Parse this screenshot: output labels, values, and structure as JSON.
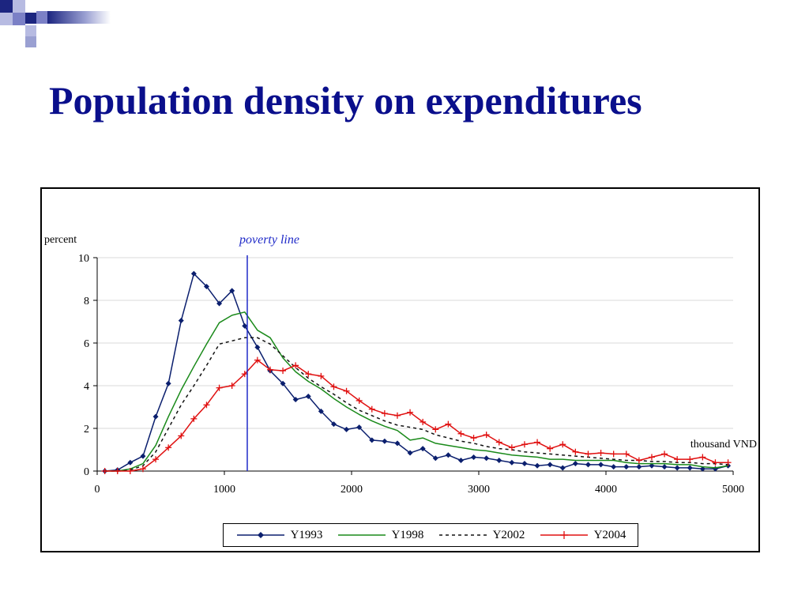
{
  "slide": {
    "title": "Population density on expenditures"
  },
  "chart_data": {
    "type": "line",
    "ylabel": "percent",
    "xlabel": "thousand VND",
    "xlim": [
      0,
      5000
    ],
    "ylim": [
      0,
      10
    ],
    "x_ticks": [
      0,
      1000,
      2000,
      3000,
      4000,
      5000
    ],
    "y_ticks": [
      0,
      2,
      4,
      6,
      8,
      10
    ],
    "grid": "horizontal",
    "legend_placement": "bottom",
    "annotation": {
      "label": "poverty line",
      "x": 1180,
      "color": "#1f2ac8"
    },
    "series": [
      {
        "name": "Y1993",
        "color": "#0b1f6e",
        "marker": "diamond",
        "dash": "",
        "x": [
          60,
          160,
          260,
          360,
          460,
          560,
          660,
          760,
          860,
          960,
          1060,
          1160,
          1260,
          1360,
          1460,
          1560,
          1660,
          1760,
          1860,
          1960,
          2060,
          2160,
          2260,
          2360,
          2460,
          2560,
          2660,
          2760,
          2860,
          2960,
          3060,
          3160,
          3260,
          3360,
          3460,
          3560,
          3660,
          3760,
          3860,
          3960,
          4060,
          4160,
          4260,
          4360,
          4460,
          4560,
          4660,
          4760,
          4860,
          4960
        ],
        "y": [
          0,
          0.05,
          0.4,
          0.7,
          2.55,
          4.1,
          7.05,
          9.25,
          8.65,
          7.85,
          8.45,
          6.8,
          5.8,
          4.7,
          4.1,
          3.35,
          3.5,
          2.8,
          2.2,
          1.95,
          2.05,
          1.45,
          1.4,
          1.3,
          0.85,
          1.05,
          0.6,
          0.75,
          0.5,
          0.65,
          0.6,
          0.5,
          0.4,
          0.35,
          0.25,
          0.3,
          0.15,
          0.35,
          0.3,
          0.3,
          0.2,
          0.2,
          0.2,
          0.25,
          0.2,
          0.15,
          0.15,
          0.1,
          0.1,
          0.25
        ]
      },
      {
        "name": "Y1998",
        "color": "#1a8a1a",
        "marker": "none",
        "dash": "",
        "x": [
          60,
          160,
          260,
          360,
          460,
          560,
          660,
          760,
          860,
          960,
          1060,
          1160,
          1260,
          1360,
          1460,
          1560,
          1660,
          1760,
          1860,
          1960,
          2060,
          2160,
          2260,
          2360,
          2460,
          2560,
          2660,
          2760,
          2860,
          2960,
          3060,
          3160,
          3260,
          3360,
          3460,
          3560,
          3660,
          3760,
          3860,
          3960,
          4060,
          4160,
          4260,
          4360,
          4460,
          4560,
          4660,
          4760,
          4860,
          4960
        ],
        "y": [
          0,
          0,
          0.1,
          0.35,
          1.2,
          2.55,
          3.8,
          4.9,
          5.95,
          6.95,
          7.3,
          7.45,
          6.6,
          6.25,
          5.3,
          4.65,
          4.2,
          3.85,
          3.4,
          3.0,
          2.65,
          2.35,
          2.1,
          1.9,
          1.45,
          1.55,
          1.3,
          1.2,
          1.1,
          1.0,
          0.95,
          0.85,
          0.75,
          0.7,
          0.65,
          0.55,
          0.55,
          0.5,
          0.5,
          0.5,
          0.5,
          0.4,
          0.35,
          0.35,
          0.35,
          0.3,
          0.3,
          0.2,
          0.15,
          0.25
        ]
      },
      {
        "name": "Y2002",
        "color": "#111111",
        "marker": "none",
        "dash": "4,4",
        "x": [
          60,
          160,
          260,
          360,
          460,
          560,
          660,
          760,
          860,
          960,
          1060,
          1160,
          1260,
          1360,
          1460,
          1560,
          1660,
          1760,
          1860,
          1960,
          2060,
          2160,
          2260,
          2360,
          2460,
          2560,
          2660,
          2760,
          2860,
          2960,
          3060,
          3160,
          3260,
          3360,
          3460,
          3560,
          3660,
          3760,
          3860,
          3960,
          4060,
          4160,
          4260,
          4360,
          4460,
          4560,
          4660,
          4760,
          4860,
          4960
        ],
        "y": [
          0,
          0,
          0.05,
          0.25,
          0.9,
          2.0,
          3.1,
          4.0,
          4.95,
          5.95,
          6.1,
          6.25,
          6.25,
          5.95,
          5.4,
          4.85,
          4.35,
          3.95,
          3.6,
          3.2,
          2.85,
          2.6,
          2.35,
          2.15,
          2.05,
          1.95,
          1.7,
          1.55,
          1.4,
          1.3,
          1.15,
          1.05,
          1.0,
          0.9,
          0.85,
          0.8,
          0.75,
          0.7,
          0.65,
          0.6,
          0.55,
          0.5,
          0.5,
          0.45,
          0.45,
          0.4,
          0.4,
          0.35,
          0.35,
          0.3
        ]
      },
      {
        "name": "Y2004",
        "color": "#e01010",
        "marker": "plus",
        "dash": "",
        "x": [
          60,
          160,
          260,
          360,
          460,
          560,
          660,
          760,
          860,
          960,
          1060,
          1160,
          1260,
          1360,
          1460,
          1560,
          1660,
          1760,
          1860,
          1960,
          2060,
          2160,
          2260,
          2360,
          2460,
          2560,
          2660,
          2760,
          2860,
          2960,
          3060,
          3160,
          3260,
          3360,
          3460,
          3560,
          3660,
          3760,
          3860,
          3960,
          4060,
          4160,
          4260,
          4360,
          4460,
          4560,
          4660,
          4760,
          4860,
          4960
        ],
        "y": [
          0,
          0,
          0,
          0.1,
          0.55,
          1.1,
          1.65,
          2.45,
          3.1,
          3.9,
          4.0,
          4.55,
          5.2,
          4.75,
          4.7,
          4.95,
          4.55,
          4.45,
          3.95,
          3.75,
          3.3,
          2.9,
          2.7,
          2.6,
          2.75,
          2.3,
          1.95,
          2.2,
          1.75,
          1.55,
          1.7,
          1.35,
          1.1,
          1.25,
          1.35,
          1.05,
          1.25,
          0.9,
          0.8,
          0.85,
          0.8,
          0.8,
          0.5,
          0.65,
          0.8,
          0.55,
          0.55,
          0.65,
          0.4,
          0.4
        ]
      }
    ]
  }
}
